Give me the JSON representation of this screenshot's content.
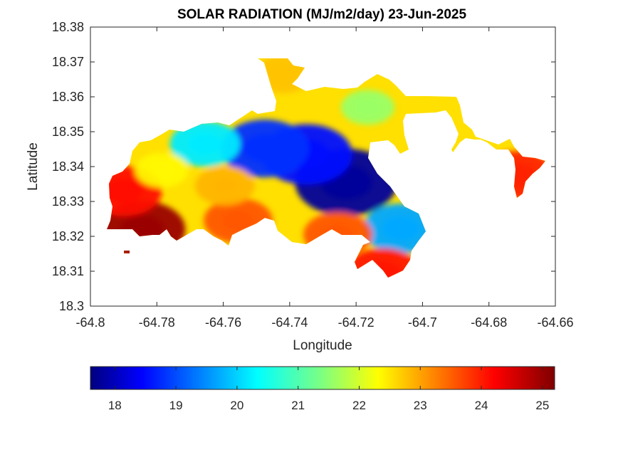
{
  "chart_data": {
    "type": "heatmap",
    "title": "SOLAR RADIATION (MJ/m2/day) 23-Jun-2025",
    "xlabel": "Longitude",
    "ylabel": "Latitude",
    "xlim": [
      -64.8,
      -64.66
    ],
    "ylim": [
      18.3,
      18.38
    ],
    "x_ticks": [
      -64.8,
      -64.78,
      -64.76,
      -64.74,
      -64.72,
      -64.7,
      -64.68,
      -64.66
    ],
    "x_tick_labels": [
      "-64.8",
      "-64.78",
      "-64.76",
      "-64.74",
      "-64.72",
      "-64.7",
      "-64.68",
      "-64.66"
    ],
    "y_ticks": [
      18.3,
      18.31,
      18.32,
      18.33,
      18.34,
      18.35,
      18.36,
      18.37,
      18.38
    ],
    "y_tick_labels": [
      "18.3",
      "18.31",
      "18.32",
      "18.33",
      "18.34",
      "18.35",
      "18.36",
      "18.37",
      "18.38"
    ],
    "grid": false,
    "colormap": "jet",
    "colorbar": {
      "orientation": "horizontal",
      "placement": "bottom",
      "range": [
        17.6,
        25.2
      ],
      "ticks": [
        18,
        19,
        20,
        21,
        22,
        23,
        24,
        25
      ],
      "tick_labels": [
        "18",
        "19",
        "20",
        "21",
        "22",
        "23",
        "24",
        "25"
      ]
    },
    "features": [
      {
        "lon": -64.723,
        "lat": 18.3355,
        "value": 17.8
      },
      {
        "lon": -64.735,
        "lat": 18.3435,
        "value": 18.6
      },
      {
        "lon": -64.7475,
        "lat": 18.3452,
        "value": 18.9
      },
      {
        "lon": -64.7065,
        "lat": 18.3222,
        "value": 19.8
      },
      {
        "lon": -64.7655,
        "lat": 18.3465,
        "value": 20.3
      },
      {
        "lon": -64.7785,
        "lat": 18.339,
        "value": 22.4
      },
      {
        "lon": -64.7595,
        "lat": 18.3345,
        "value": 22.9
      },
      {
        "lon": -64.7845,
        "lat": 18.322,
        "value": 25.0
      },
      {
        "lon": -64.79,
        "lat": 18.333,
        "value": 24.2
      },
      {
        "lon": -64.7555,
        "lat": 18.3245,
        "value": 23.6
      },
      {
        "lon": -64.7255,
        "lat": 18.3205,
        "value": 23.6
      },
      {
        "lon": -64.712,
        "lat": 18.3095,
        "value": 24.1
      },
      {
        "lon": -64.742,
        "lat": 18.3665,
        "value": 22.8
      },
      {
        "lon": -64.7165,
        "lat": 18.357,
        "value": 21.6
      },
      {
        "lon": -64.6715,
        "lat": 18.3375,
        "value": 24.0
      }
    ]
  }
}
